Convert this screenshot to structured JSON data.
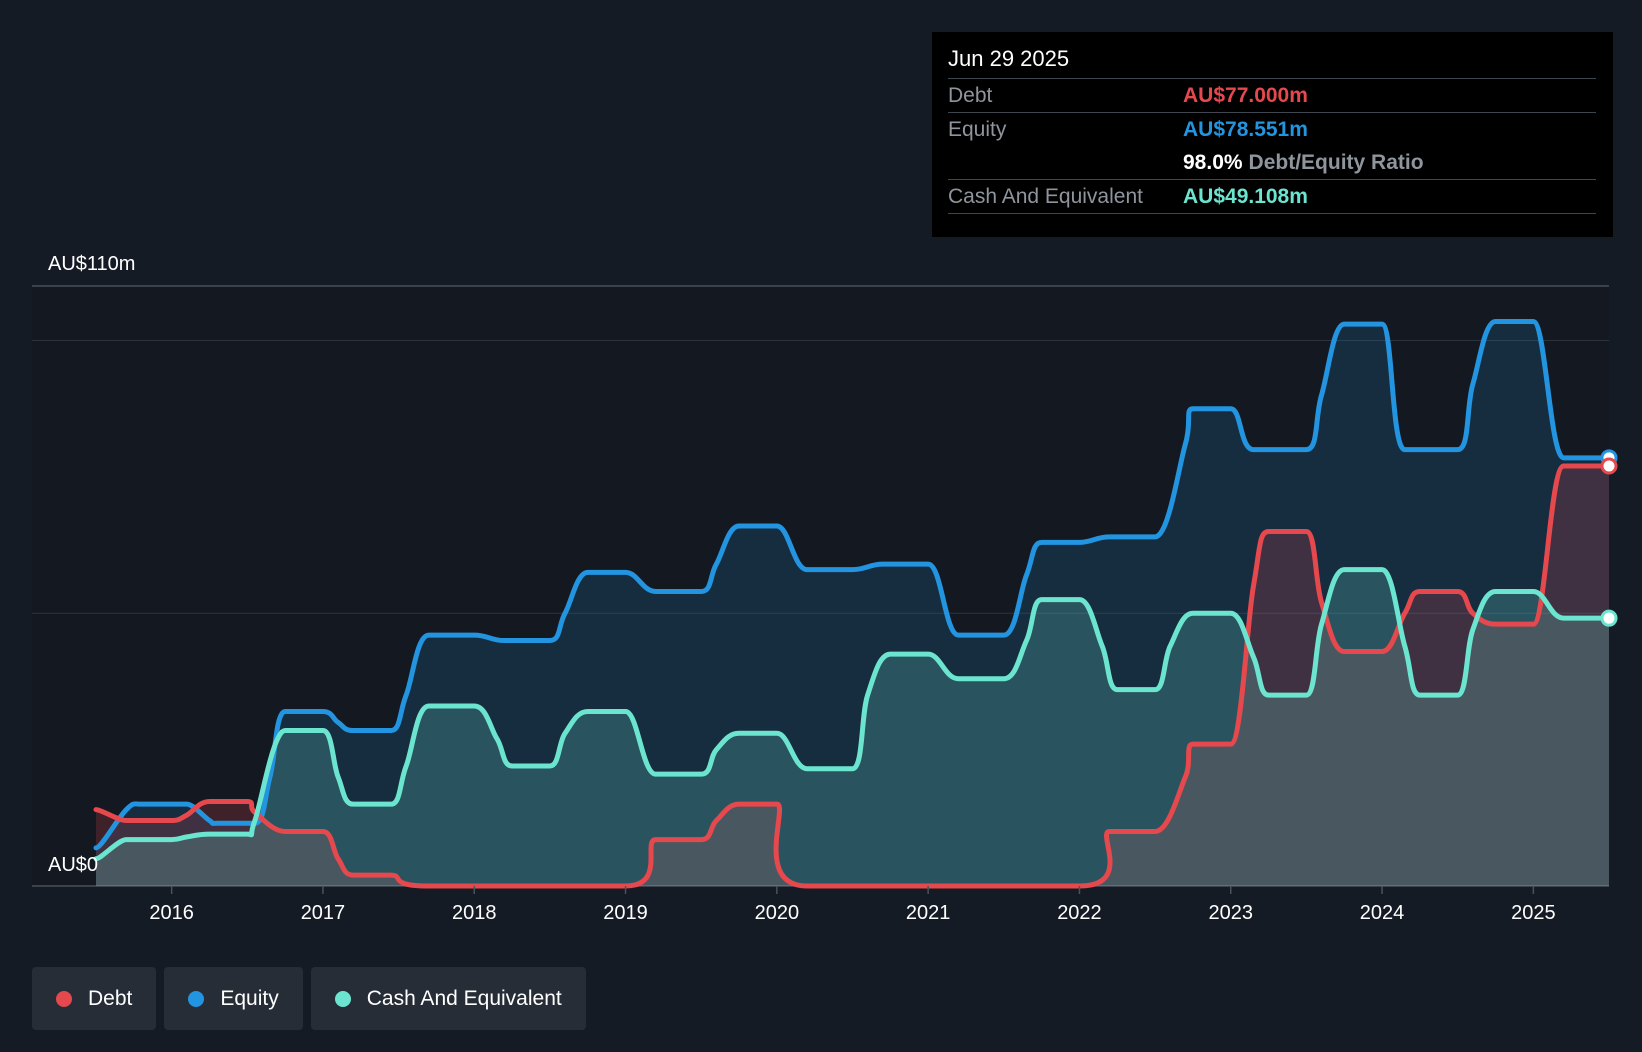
{
  "tooltip": {
    "date": "Jun 29 2025",
    "debt_label": "Debt",
    "debt_value": "AU$77.000m",
    "equity_label": "Equity",
    "equity_value": "AU$78.551m",
    "ratio_value": "98.0%",
    "ratio_label": "Debt/Equity Ratio",
    "cash_label": "Cash And Equivalent",
    "cash_value": "AU$49.108m"
  },
  "legend": {
    "debt": "Debt",
    "equity": "Equity",
    "cash": "Cash And Equivalent"
  },
  "colors": {
    "debt": "#e5484d",
    "equity": "#2394df",
    "cash": "#6ce5d0"
  },
  "chart_data": {
    "type": "area",
    "y_top_label": "AU$110m",
    "y_bottom_label": "AU$0",
    "ylim": [
      0,
      110
    ],
    "xlim": [
      2015.5,
      2025.5
    ],
    "x_ticks": [
      2016,
      2017,
      2018,
      2019,
      2020,
      2021,
      2022,
      2023,
      2024,
      2025
    ],
    "x_tick_labels": [
      "2016",
      "2017",
      "2018",
      "2019",
      "2020",
      "2021",
      "2022",
      "2023",
      "2024",
      "2025"
    ],
    "series": [
      {
        "name": "Equity",
        "points": [
          [
            2015.5,
            7
          ],
          [
            2015.7,
            14
          ],
          [
            2015.8,
            15
          ],
          [
            2016.0,
            15
          ],
          [
            2016.1,
            15
          ],
          [
            2016.25,
            12
          ],
          [
            2016.3,
            11.5
          ],
          [
            2016.55,
            11.5
          ],
          [
            2016.65,
            20
          ],
          [
            2016.75,
            32
          ],
          [
            2017.0,
            32
          ],
          [
            2017.1,
            30
          ],
          [
            2017.2,
            28.5
          ],
          [
            2017.45,
            28.5
          ],
          [
            2017.55,
            35
          ],
          [
            2017.7,
            46
          ],
          [
            2018.0,
            46
          ],
          [
            2018.2,
            45
          ],
          [
            2018.5,
            45
          ],
          [
            2018.6,
            50
          ],
          [
            2018.75,
            57.5
          ],
          [
            2019.0,
            57.5
          ],
          [
            2019.2,
            54
          ],
          [
            2019.5,
            54
          ],
          [
            2019.6,
            59
          ],
          [
            2019.75,
            66
          ],
          [
            2020.0,
            66
          ],
          [
            2020.2,
            58
          ],
          [
            2020.5,
            58
          ],
          [
            2020.7,
            59
          ],
          [
            2021.0,
            59
          ],
          [
            2021.2,
            46
          ],
          [
            2021.5,
            46
          ],
          [
            2021.65,
            57
          ],
          [
            2021.75,
            63
          ],
          [
            2022.0,
            63
          ],
          [
            2022.2,
            64
          ],
          [
            2022.5,
            64
          ],
          [
            2022.7,
            81
          ],
          [
            2022.75,
            87.5
          ],
          [
            2023.0,
            87.5
          ],
          [
            2023.15,
            80
          ],
          [
            2023.5,
            80
          ],
          [
            2023.6,
            90
          ],
          [
            2023.75,
            103
          ],
          [
            2024.0,
            103
          ],
          [
            2024.15,
            80
          ],
          [
            2024.5,
            80
          ],
          [
            2024.6,
            92
          ],
          [
            2024.75,
            103.5
          ],
          [
            2025.0,
            103.5
          ],
          [
            2025.2,
            78.5
          ],
          [
            2025.5,
            78.5
          ]
        ]
      },
      {
        "name": "Debt",
        "points": [
          [
            2015.5,
            14
          ],
          [
            2015.7,
            12
          ],
          [
            2015.8,
            12
          ],
          [
            2016.0,
            12
          ],
          [
            2016.1,
            13
          ],
          [
            2016.25,
            15.5
          ],
          [
            2016.5,
            15.5
          ],
          [
            2016.55,
            13.5
          ],
          [
            2016.75,
            10
          ],
          [
            2017.0,
            10
          ],
          [
            2017.1,
            5
          ],
          [
            2017.2,
            2
          ],
          [
            2017.45,
            2
          ],
          [
            2017.7,
            0
          ],
          [
            2019.0,
            0
          ],
          [
            2019.2,
            8.5
          ],
          [
            2019.5,
            8.5
          ],
          [
            2019.6,
            12
          ],
          [
            2019.75,
            15
          ],
          [
            2020.0,
            15
          ],
          [
            2020.2,
            0
          ],
          [
            2022.0,
            0
          ],
          [
            2022.2,
            10
          ],
          [
            2022.5,
            10
          ],
          [
            2022.7,
            20
          ],
          [
            2022.75,
            26
          ],
          [
            2023.0,
            26
          ],
          [
            2023.15,
            55
          ],
          [
            2023.25,
            65
          ],
          [
            2023.5,
            65
          ],
          [
            2023.6,
            52
          ],
          [
            2023.75,
            43
          ],
          [
            2024.0,
            43
          ],
          [
            2024.15,
            50
          ],
          [
            2024.25,
            54
          ],
          [
            2024.5,
            54
          ],
          [
            2024.6,
            50
          ],
          [
            2024.75,
            48
          ],
          [
            2025.0,
            48
          ],
          [
            2025.2,
            77
          ],
          [
            2025.5,
            77
          ]
        ]
      },
      {
        "name": "Cash And Equivalent",
        "points": [
          [
            2015.5,
            5
          ],
          [
            2015.7,
            8.5
          ],
          [
            2015.8,
            8.5
          ],
          [
            2016.0,
            8.5
          ],
          [
            2016.1,
            9
          ],
          [
            2016.25,
            9.5
          ],
          [
            2016.5,
            9.5
          ],
          [
            2016.55,
            12
          ],
          [
            2016.75,
            28.5
          ],
          [
            2017.0,
            28.5
          ],
          [
            2017.1,
            20
          ],
          [
            2017.2,
            15
          ],
          [
            2017.45,
            15
          ],
          [
            2017.55,
            22
          ],
          [
            2017.7,
            33
          ],
          [
            2018.0,
            33
          ],
          [
            2018.15,
            27
          ],
          [
            2018.25,
            22
          ],
          [
            2018.5,
            22
          ],
          [
            2018.6,
            28
          ],
          [
            2018.75,
            32
          ],
          [
            2019.0,
            32
          ],
          [
            2019.2,
            20.5
          ],
          [
            2019.5,
            20.5
          ],
          [
            2019.6,
            25
          ],
          [
            2019.75,
            28
          ],
          [
            2020.0,
            28
          ],
          [
            2020.2,
            21.5
          ],
          [
            2020.5,
            21.5
          ],
          [
            2020.6,
            35
          ],
          [
            2020.75,
            42.5
          ],
          [
            2021.0,
            42.5
          ],
          [
            2021.2,
            38
          ],
          [
            2021.5,
            38
          ],
          [
            2021.65,
            45
          ],
          [
            2021.75,
            52.5
          ],
          [
            2022.0,
            52.5
          ],
          [
            2022.15,
            44
          ],
          [
            2022.25,
            36
          ],
          [
            2022.5,
            36
          ],
          [
            2022.6,
            44
          ],
          [
            2022.75,
            50
          ],
          [
            2023.0,
            50
          ],
          [
            2023.15,
            42
          ],
          [
            2023.25,
            35
          ],
          [
            2023.5,
            35
          ],
          [
            2023.6,
            48
          ],
          [
            2023.75,
            58
          ],
          [
            2024.0,
            58
          ],
          [
            2024.15,
            44
          ],
          [
            2024.25,
            35
          ],
          [
            2024.5,
            35
          ],
          [
            2024.6,
            47
          ],
          [
            2024.75,
            54
          ],
          [
            2025.0,
            54
          ],
          [
            2025.2,
            49.1
          ],
          [
            2025.5,
            49.1
          ]
        ]
      }
    ]
  }
}
